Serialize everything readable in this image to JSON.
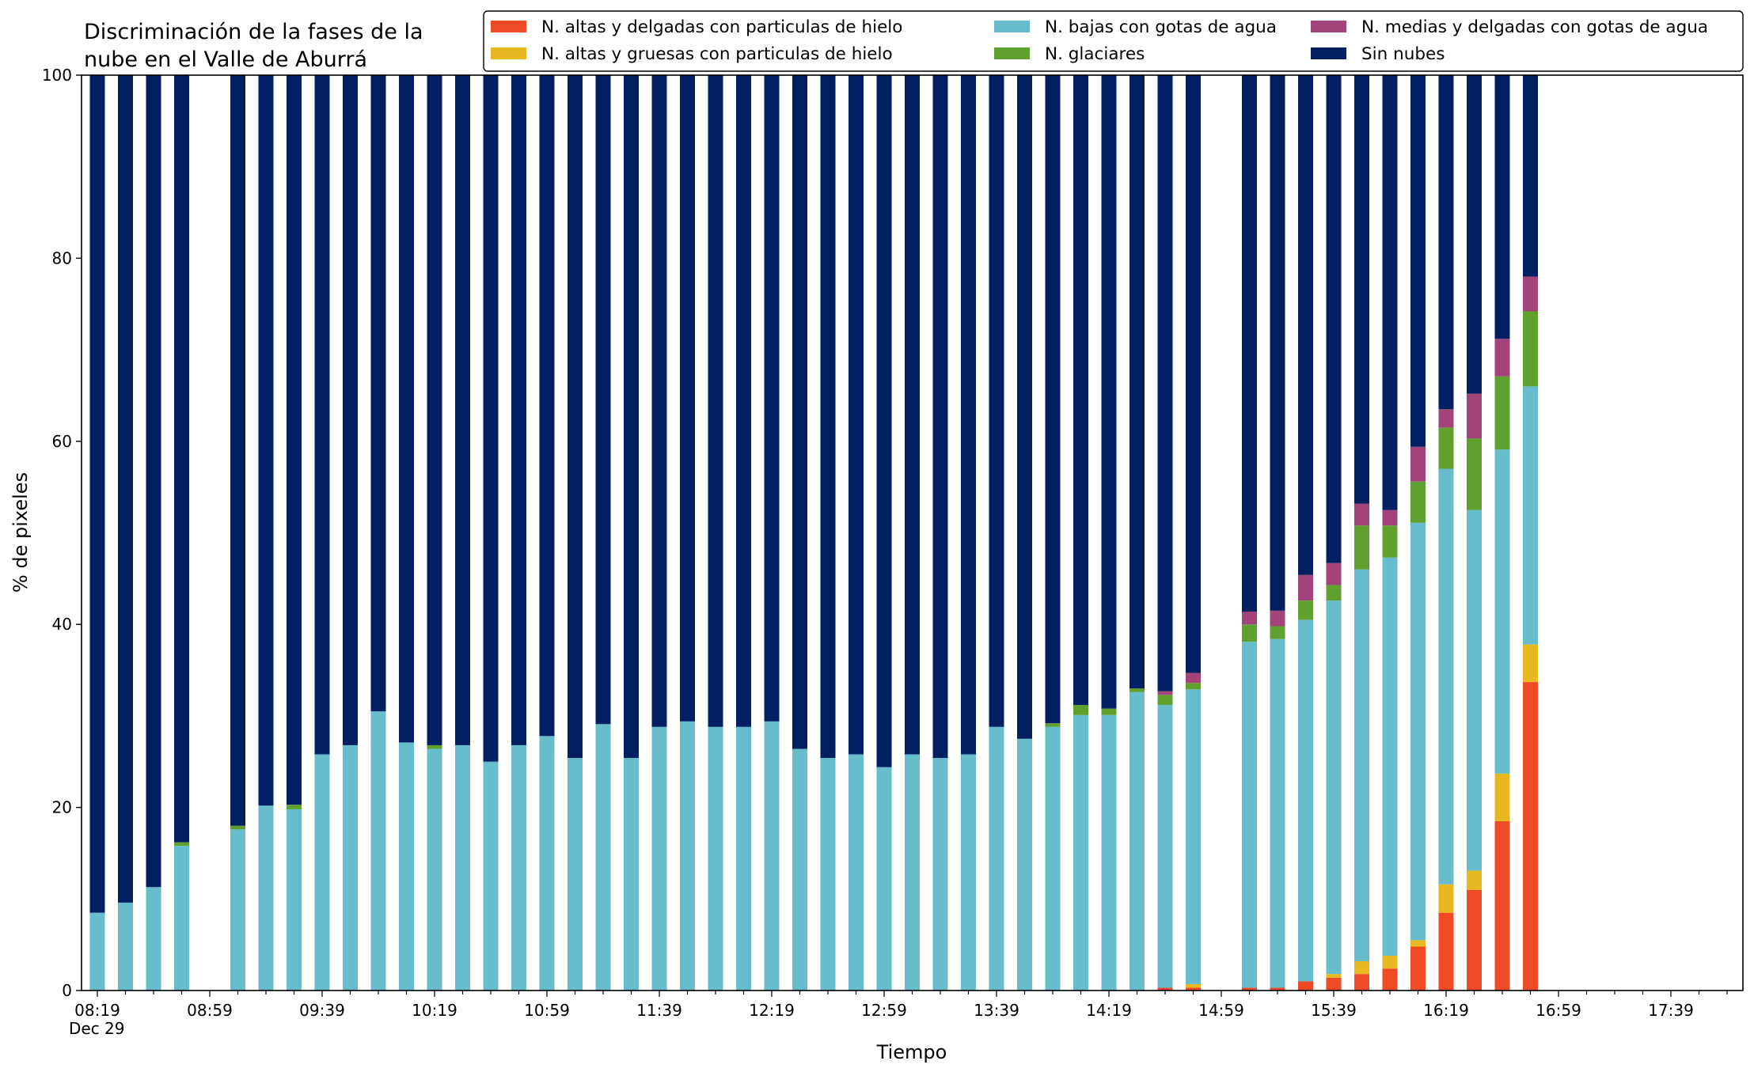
{
  "chart_data": {
    "type": "bar",
    "stacked": true,
    "title_lines": [
      "Discriminación de la fases de la",
      "nube en el Valle de Aburrá"
    ],
    "xlabel": "Tiempo",
    "ylabel": "% de pixeles",
    "ylim": [
      0,
      100
    ],
    "yticks": [
      0,
      20,
      40,
      60,
      80,
      100
    ],
    "xtick_labels": [
      "08:19",
      "08:59",
      "09:39",
      "10:19",
      "10:59",
      "11:39",
      "12:19",
      "12:59",
      "13:39",
      "14:19",
      "14:59",
      "15:39",
      "16:19",
      "16:59",
      "17:39"
    ],
    "x_date_label": "Dec 29",
    "slot_count": 59,
    "legend_position": "top",
    "legend_entries": [
      {
        "name": "N. altas y delgadas con particulas de hielo",
        "color": "#ef4a26"
      },
      {
        "name": "N. altas y gruesas con particulas de hielo",
        "color": "#e9b821"
      },
      {
        "name": "N. bajas con gotas de agua",
        "color": "#67bdcb"
      },
      {
        "name": "N. glaciares",
        "color": "#5fa02f"
      },
      {
        "name": "N. medias y delgadas con gotas de agua",
        "color": "#a2437a"
      },
      {
        "name": "Sin nubes",
        "color": "#021f61"
      }
    ],
    "bars": [
      {
        "slot": 0,
        "altas_delgadas": 0,
        "altas_gruesas": 0,
        "bajas": 8.5,
        "glaciares": 0,
        "medias": 0,
        "sin_nubes": 91.5
      },
      {
        "slot": 1,
        "altas_delgadas": 0,
        "altas_gruesas": 0,
        "bajas": 9.6,
        "glaciares": 0,
        "medias": 0,
        "sin_nubes": 90.4
      },
      {
        "slot": 2,
        "altas_delgadas": 0,
        "altas_gruesas": 0,
        "bajas": 11.3,
        "glaciares": 0,
        "medias": 0,
        "sin_nubes": 88.7
      },
      {
        "slot": 3,
        "altas_delgadas": 0,
        "altas_gruesas": 0,
        "bajas": 15.8,
        "glaciares": 0.4,
        "medias": 0,
        "sin_nubes": 83.8
      },
      {
        "slot": 5,
        "altas_delgadas": 0,
        "altas_gruesas": 0,
        "bajas": 17.6,
        "glaciares": 0.4,
        "medias": 0,
        "sin_nubes": 82.0
      },
      {
        "slot": 6,
        "altas_delgadas": 0,
        "altas_gruesas": 0,
        "bajas": 20.2,
        "glaciares": 0,
        "medias": 0,
        "sin_nubes": 79.8
      },
      {
        "slot": 7,
        "altas_delgadas": 0,
        "altas_gruesas": 0,
        "bajas": 19.8,
        "glaciares": 0.5,
        "medias": 0,
        "sin_nubes": 79.7
      },
      {
        "slot": 8,
        "altas_delgadas": 0,
        "altas_gruesas": 0,
        "bajas": 25.8,
        "glaciares": 0,
        "medias": 0,
        "sin_nubes": 74.2
      },
      {
        "slot": 9,
        "altas_delgadas": 0,
        "altas_gruesas": 0,
        "bajas": 26.8,
        "glaciares": 0,
        "medias": 0,
        "sin_nubes": 73.2
      },
      {
        "slot": 10,
        "altas_delgadas": 0,
        "altas_gruesas": 0,
        "bajas": 30.5,
        "glaciares": 0,
        "medias": 0,
        "sin_nubes": 69.5
      },
      {
        "slot": 11,
        "altas_delgadas": 0,
        "altas_gruesas": 0,
        "bajas": 27.1,
        "glaciares": 0,
        "medias": 0,
        "sin_nubes": 72.9
      },
      {
        "slot": 12,
        "altas_delgadas": 0,
        "altas_gruesas": 0,
        "bajas": 26.4,
        "glaciares": 0.4,
        "medias": 0,
        "sin_nubes": 73.2
      },
      {
        "slot": 13,
        "altas_delgadas": 0,
        "altas_gruesas": 0,
        "bajas": 26.8,
        "glaciares": 0,
        "medias": 0,
        "sin_nubes": 73.2
      },
      {
        "slot": 14,
        "altas_delgadas": 0,
        "altas_gruesas": 0,
        "bajas": 25.0,
        "glaciares": 0,
        "medias": 0,
        "sin_nubes": 75.0
      },
      {
        "slot": 15,
        "altas_delgadas": 0,
        "altas_gruesas": 0,
        "bajas": 26.8,
        "glaciares": 0,
        "medias": 0,
        "sin_nubes": 73.2
      },
      {
        "slot": 16,
        "altas_delgadas": 0,
        "altas_gruesas": 0,
        "bajas": 27.8,
        "glaciares": 0,
        "medias": 0,
        "sin_nubes": 72.2
      },
      {
        "slot": 17,
        "altas_delgadas": 0,
        "altas_gruesas": 0,
        "bajas": 25.4,
        "glaciares": 0,
        "medias": 0,
        "sin_nubes": 74.6
      },
      {
        "slot": 18,
        "altas_delgadas": 0,
        "altas_gruesas": 0,
        "bajas": 29.1,
        "glaciares": 0,
        "medias": 0,
        "sin_nubes": 70.9
      },
      {
        "slot": 19,
        "altas_delgadas": 0,
        "altas_gruesas": 0,
        "bajas": 25.4,
        "glaciares": 0,
        "medias": 0,
        "sin_nubes": 74.6
      },
      {
        "slot": 20,
        "altas_delgadas": 0,
        "altas_gruesas": 0,
        "bajas": 28.8,
        "glaciares": 0,
        "medias": 0,
        "sin_nubes": 71.2
      },
      {
        "slot": 21,
        "altas_delgadas": 0,
        "altas_gruesas": 0,
        "bajas": 29.4,
        "glaciares": 0,
        "medias": 0,
        "sin_nubes": 70.6
      },
      {
        "slot": 22,
        "altas_delgadas": 0,
        "altas_gruesas": 0,
        "bajas": 28.8,
        "glaciares": 0,
        "medias": 0,
        "sin_nubes": 71.2
      },
      {
        "slot": 23,
        "altas_delgadas": 0,
        "altas_gruesas": 0,
        "bajas": 28.8,
        "glaciares": 0,
        "medias": 0,
        "sin_nubes": 71.2
      },
      {
        "slot": 24,
        "altas_delgadas": 0,
        "altas_gruesas": 0,
        "bajas": 29.4,
        "glaciares": 0,
        "medias": 0,
        "sin_nubes": 70.6
      },
      {
        "slot": 25,
        "altas_delgadas": 0,
        "altas_gruesas": 0,
        "bajas": 26.4,
        "glaciares": 0,
        "medias": 0,
        "sin_nubes": 73.6
      },
      {
        "slot": 26,
        "altas_delgadas": 0,
        "altas_gruesas": 0,
        "bajas": 25.4,
        "glaciares": 0,
        "medias": 0,
        "sin_nubes": 74.6
      },
      {
        "slot": 27,
        "altas_delgadas": 0,
        "altas_gruesas": 0,
        "bajas": 25.8,
        "glaciares": 0,
        "medias": 0,
        "sin_nubes": 74.2
      },
      {
        "slot": 28,
        "altas_delgadas": 0,
        "altas_gruesas": 0,
        "bajas": 24.4,
        "glaciares": 0,
        "medias": 0,
        "sin_nubes": 75.6
      },
      {
        "slot": 29,
        "altas_delgadas": 0,
        "altas_gruesas": 0,
        "bajas": 25.8,
        "glaciares": 0,
        "medias": 0,
        "sin_nubes": 74.2
      },
      {
        "slot": 30,
        "altas_delgadas": 0,
        "altas_gruesas": 0,
        "bajas": 25.4,
        "glaciares": 0,
        "medias": 0,
        "sin_nubes": 74.6
      },
      {
        "slot": 31,
        "altas_delgadas": 0,
        "altas_gruesas": 0,
        "bajas": 25.8,
        "glaciares": 0,
        "medias": 0,
        "sin_nubes": 74.2
      },
      {
        "slot": 32,
        "altas_delgadas": 0,
        "altas_gruesas": 0,
        "bajas": 28.8,
        "glaciares": 0,
        "medias": 0,
        "sin_nubes": 71.2
      },
      {
        "slot": 33,
        "altas_delgadas": 0,
        "altas_gruesas": 0,
        "bajas": 27.5,
        "glaciares": 0,
        "medias": 0,
        "sin_nubes": 72.5
      },
      {
        "slot": 34,
        "altas_delgadas": 0,
        "altas_gruesas": 0,
        "bajas": 28.8,
        "glaciares": 0.4,
        "medias": 0,
        "sin_nubes": 70.8
      },
      {
        "slot": 35,
        "altas_delgadas": 0,
        "altas_gruesas": 0,
        "bajas": 30.1,
        "glaciares": 1.1,
        "medias": 0,
        "sin_nubes": 68.8
      },
      {
        "slot": 36,
        "altas_delgadas": 0,
        "altas_gruesas": 0,
        "bajas": 30.1,
        "glaciares": 0.7,
        "medias": 0,
        "sin_nubes": 69.2
      },
      {
        "slot": 37,
        "altas_delgadas": 0,
        "altas_gruesas": 0,
        "bajas": 32.6,
        "glaciares": 0.4,
        "medias": 0,
        "sin_nubes": 67.0
      },
      {
        "slot": 38,
        "altas_delgadas": 0.3,
        "altas_gruesas": 0,
        "bajas": 30.9,
        "glaciares": 1.1,
        "medias": 0.4,
        "sin_nubes": 67.3
      },
      {
        "slot": 39,
        "altas_delgadas": 0.3,
        "altas_gruesas": 0.4,
        "bajas": 32.2,
        "glaciares": 0.7,
        "medias": 1.1,
        "sin_nubes": 65.3
      },
      {
        "slot": 41,
        "altas_delgadas": 0.3,
        "altas_gruesas": 0,
        "bajas": 37.8,
        "glaciares": 1.9,
        "medias": 1.4,
        "sin_nubes": 58.6
      },
      {
        "slot": 42,
        "altas_delgadas": 0.3,
        "altas_gruesas": 0,
        "bajas": 38.1,
        "glaciares": 1.4,
        "medias": 1.7,
        "sin_nubes": 58.5
      },
      {
        "slot": 43,
        "altas_delgadas": 1.0,
        "altas_gruesas": 0,
        "bajas": 39.5,
        "glaciares": 2.1,
        "medias": 2.8,
        "sin_nubes": 54.6
      },
      {
        "slot": 44,
        "altas_delgadas": 1.4,
        "altas_gruesas": 0.4,
        "bajas": 40.8,
        "glaciares": 1.7,
        "medias": 2.4,
        "sin_nubes": 53.3
      },
      {
        "slot": 45,
        "altas_delgadas": 1.8,
        "altas_gruesas": 1.4,
        "bajas": 42.8,
        "glaciares": 4.8,
        "medias": 2.4,
        "sin_nubes": 46.8
      },
      {
        "slot": 46,
        "altas_delgadas": 2.4,
        "altas_gruesas": 1.4,
        "bajas": 43.5,
        "glaciares": 3.5,
        "medias": 1.7,
        "sin_nubes": 47.5
      },
      {
        "slot": 47,
        "altas_delgadas": 4.8,
        "altas_gruesas": 0.7,
        "bajas": 45.6,
        "glaciares": 4.5,
        "medias": 3.8,
        "sin_nubes": 40.6
      },
      {
        "slot": 48,
        "altas_delgadas": 8.5,
        "altas_gruesas": 3.1,
        "bajas": 45.4,
        "glaciares": 4.5,
        "medias": 2.0,
        "sin_nubes": 36.5
      },
      {
        "slot": 49,
        "altas_delgadas": 11.0,
        "altas_gruesas": 2.1,
        "bajas": 39.4,
        "glaciares": 7.8,
        "medias": 4.9,
        "sin_nubes": 34.8
      },
      {
        "slot": 50,
        "altas_delgadas": 18.5,
        "altas_gruesas": 5.2,
        "bajas": 35.4,
        "glaciares": 8.0,
        "medias": 4.1,
        "sin_nubes": 28.8
      },
      {
        "slot": 51,
        "altas_delgadas": 33.7,
        "altas_gruesas": 4.1,
        "bajas": 28.2,
        "glaciares": 8.2,
        "medias": 3.8,
        "sin_nubes": 22.0
      }
    ]
  }
}
